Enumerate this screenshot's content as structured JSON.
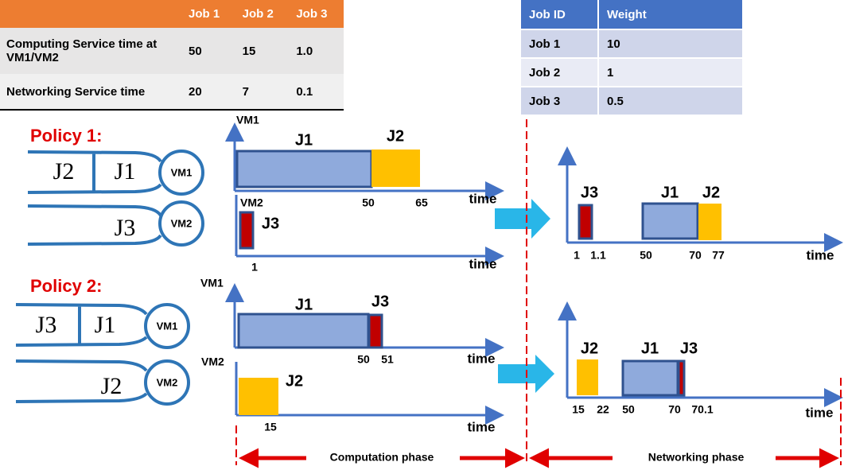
{
  "service_table": {
    "header": [
      "Job 1",
      "Job 2",
      "Job 3"
    ],
    "rows": [
      {
        "label": "Computing Service time at VM1/VM2",
        "values": [
          "50",
          "15",
          "1.0"
        ]
      },
      {
        "label": "Networking Service time",
        "values": [
          "20",
          "7",
          "0.1"
        ]
      }
    ]
  },
  "weight_table": {
    "header": [
      "Job ID",
      "Weight"
    ],
    "rows": [
      [
        "Job 1",
        "10"
      ],
      [
        "Job 2",
        "1"
      ],
      [
        "Job 3",
        "0.5"
      ]
    ]
  },
  "policies": [
    {
      "title": "Policy 1:",
      "queues": [
        {
          "jobs": [
            "J2",
            "J1"
          ],
          "server": "VM1"
        },
        {
          "jobs": [
            "J3"
          ],
          "server": "VM2"
        }
      ],
      "computation": [
        {
          "vm": "VM1",
          "jobs": [
            "J1",
            "J2"
          ],
          "ticks": [
            "50",
            "65"
          ],
          "axis_label": "time"
        },
        {
          "vm": "VM2",
          "jobs": [
            "J3"
          ],
          "ticks": [
            "1"
          ],
          "axis_label": "time"
        }
      ],
      "networking": {
        "jobs": [
          "J3",
          "J1",
          "J2"
        ],
        "ticks": [
          "1",
          "1.1",
          "50",
          "70",
          "77"
        ],
        "axis_label": "time"
      }
    },
    {
      "title": "Policy 2:",
      "queues": [
        {
          "jobs": [
            "J3",
            "J1"
          ],
          "server": "VM1"
        },
        {
          "jobs": [
            "J2"
          ],
          "server": "VM2"
        }
      ],
      "computation": [
        {
          "vm": "VM1",
          "jobs": [
            "J1",
            "J3"
          ],
          "ticks": [
            "50",
            "51"
          ],
          "axis_label": "time"
        },
        {
          "vm": "VM2",
          "jobs": [
            "J2"
          ],
          "ticks": [
            "15"
          ],
          "axis_label": "time"
        }
      ],
      "networking": {
        "jobs": [
          "J2",
          "J1",
          "J3"
        ],
        "ticks": [
          "15",
          "22",
          "50",
          "70",
          "70.1"
        ],
        "axis_label": "time"
      }
    }
  ],
  "phases": [
    "Computation phase",
    "Networking phase"
  ]
}
